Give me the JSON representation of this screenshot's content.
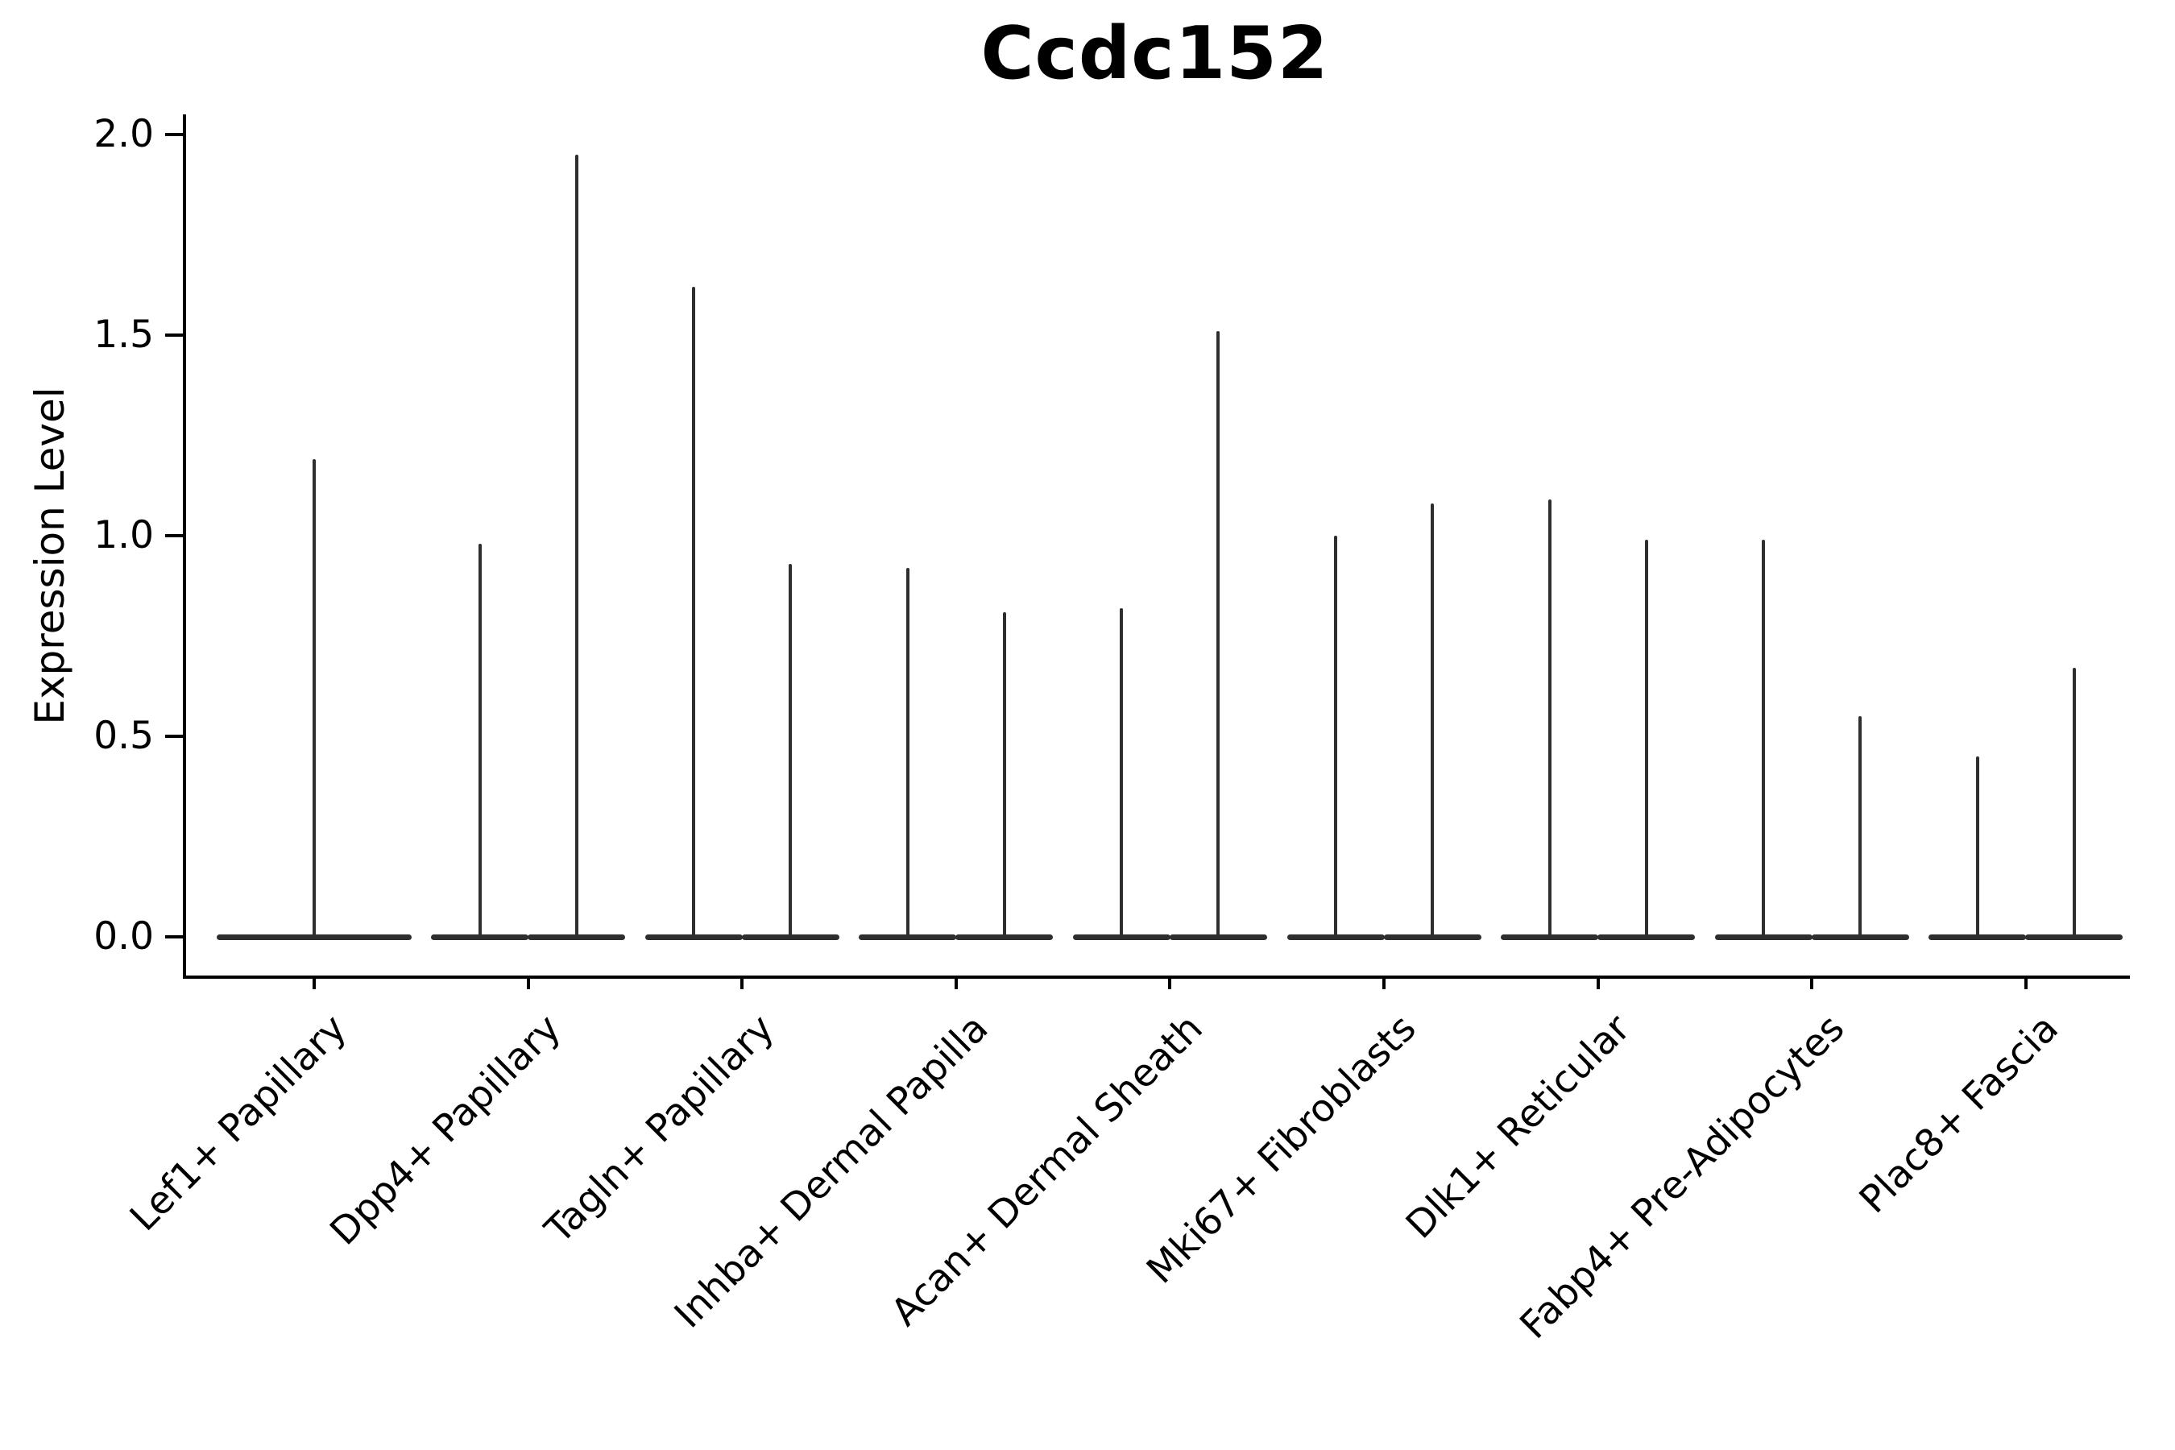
{
  "title": "Ccdc152",
  "y_axis": {
    "label": "Expression Level",
    "tick_labels": [
      "2.0",
      "1.5",
      "1.0",
      "0.5",
      "0.0"
    ],
    "tick_values": [
      2.0,
      1.5,
      1.0,
      0.5,
      0.0
    ]
  },
  "x_axis": {
    "categories": [
      "Lef1+ Papillary",
      "Dpp4+ Papillary",
      "Tagln+ Papillary",
      "Inhba+ Dermal Papilla",
      "Acan+ Dermal Sheath",
      "Mki67+ Fibroblasts",
      "Dlk1+ Reticular",
      "Fabp4+ Pre-Adipocytes",
      "Plac8+ Fascia"
    ]
  },
  "chart_data": {
    "type": "violin",
    "title": "Ccdc152",
    "xlabel": "",
    "ylabel": "Expression Level",
    "ylim": [
      -0.1,
      2.05
    ],
    "yticks": [
      0.0,
      0.5,
      1.0,
      1.5,
      2.0
    ],
    "grid": false,
    "legend": "none",
    "violin_color": "#2e2e2e",
    "axis_color": "#000000",
    "description": "Stacked-violin style expression plot; each violin is a thin spike from 0 up to its max expression with a wide flat base at 0 (most cells express 0). Categories 2-9 contain two violins each (left/right); category 1 contains one centered double-width violin.",
    "categories": [
      "Lef1+ Papillary",
      "Dpp4+ Papillary",
      "Tagln+ Papillary",
      "Inhba+ Dermal Papilla",
      "Acan+ Dermal Sheath",
      "Mki67+ Fibroblasts",
      "Dlk1+ Reticular",
      "Fabp4+ Pre-Adipocytes",
      "Plac8+ Fascia"
    ],
    "series": [
      {
        "category": "Lef1+ Papillary",
        "violins": [
          {
            "offset": 0,
            "max_expression": 1.19,
            "bulk_at": 0.0
          }
        ]
      },
      {
        "category": "Dpp4+ Papillary",
        "violins": [
          {
            "offset": -1,
            "max_expression": 0.98,
            "bulk_at": 0.0
          },
          {
            "offset": 1,
            "max_expression": 1.95,
            "bulk_at": 0.0
          }
        ]
      },
      {
        "category": "Tagln+ Papillary",
        "violins": [
          {
            "offset": -1,
            "max_expression": 1.62,
            "bulk_at": 0.0
          },
          {
            "offset": 1,
            "max_expression": 0.93,
            "bulk_at": 0.0
          }
        ]
      },
      {
        "category": "Inhba+ Dermal Papilla",
        "violins": [
          {
            "offset": -1,
            "max_expression": 0.92,
            "bulk_at": 0.0
          },
          {
            "offset": 1,
            "max_expression": 0.81,
            "bulk_at": 0.0
          }
        ]
      },
      {
        "category": "Acan+ Dermal Sheath",
        "violins": [
          {
            "offset": -1,
            "max_expression": 0.82,
            "bulk_at": 0.0
          },
          {
            "offset": 1,
            "max_expression": 1.51,
            "bulk_at": 0.0
          }
        ]
      },
      {
        "category": "Mki67+ Fibroblasts",
        "violins": [
          {
            "offset": -1,
            "max_expression": 1.0,
            "bulk_at": 0.0
          },
          {
            "offset": 1,
            "max_expression": 1.08,
            "bulk_at": 0.0
          }
        ]
      },
      {
        "category": "Dlk1+ Reticular",
        "violins": [
          {
            "offset": -1,
            "max_expression": 1.09,
            "bulk_at": 0.0
          },
          {
            "offset": 1,
            "max_expression": 0.99,
            "bulk_at": 0.0
          }
        ]
      },
      {
        "category": "Fabp4+ Pre-Adipocytes",
        "violins": [
          {
            "offset": -1,
            "max_expression": 0.99,
            "bulk_at": 0.0
          },
          {
            "offset": 1,
            "max_expression": 0.55,
            "bulk_at": 0.0
          }
        ]
      },
      {
        "category": "Plac8+ Fascia",
        "violins": [
          {
            "offset": -1,
            "max_expression": 0.45,
            "bulk_at": 0.0
          },
          {
            "offset": 1,
            "max_expression": 0.67,
            "bulk_at": 0.0
          }
        ]
      }
    ]
  }
}
